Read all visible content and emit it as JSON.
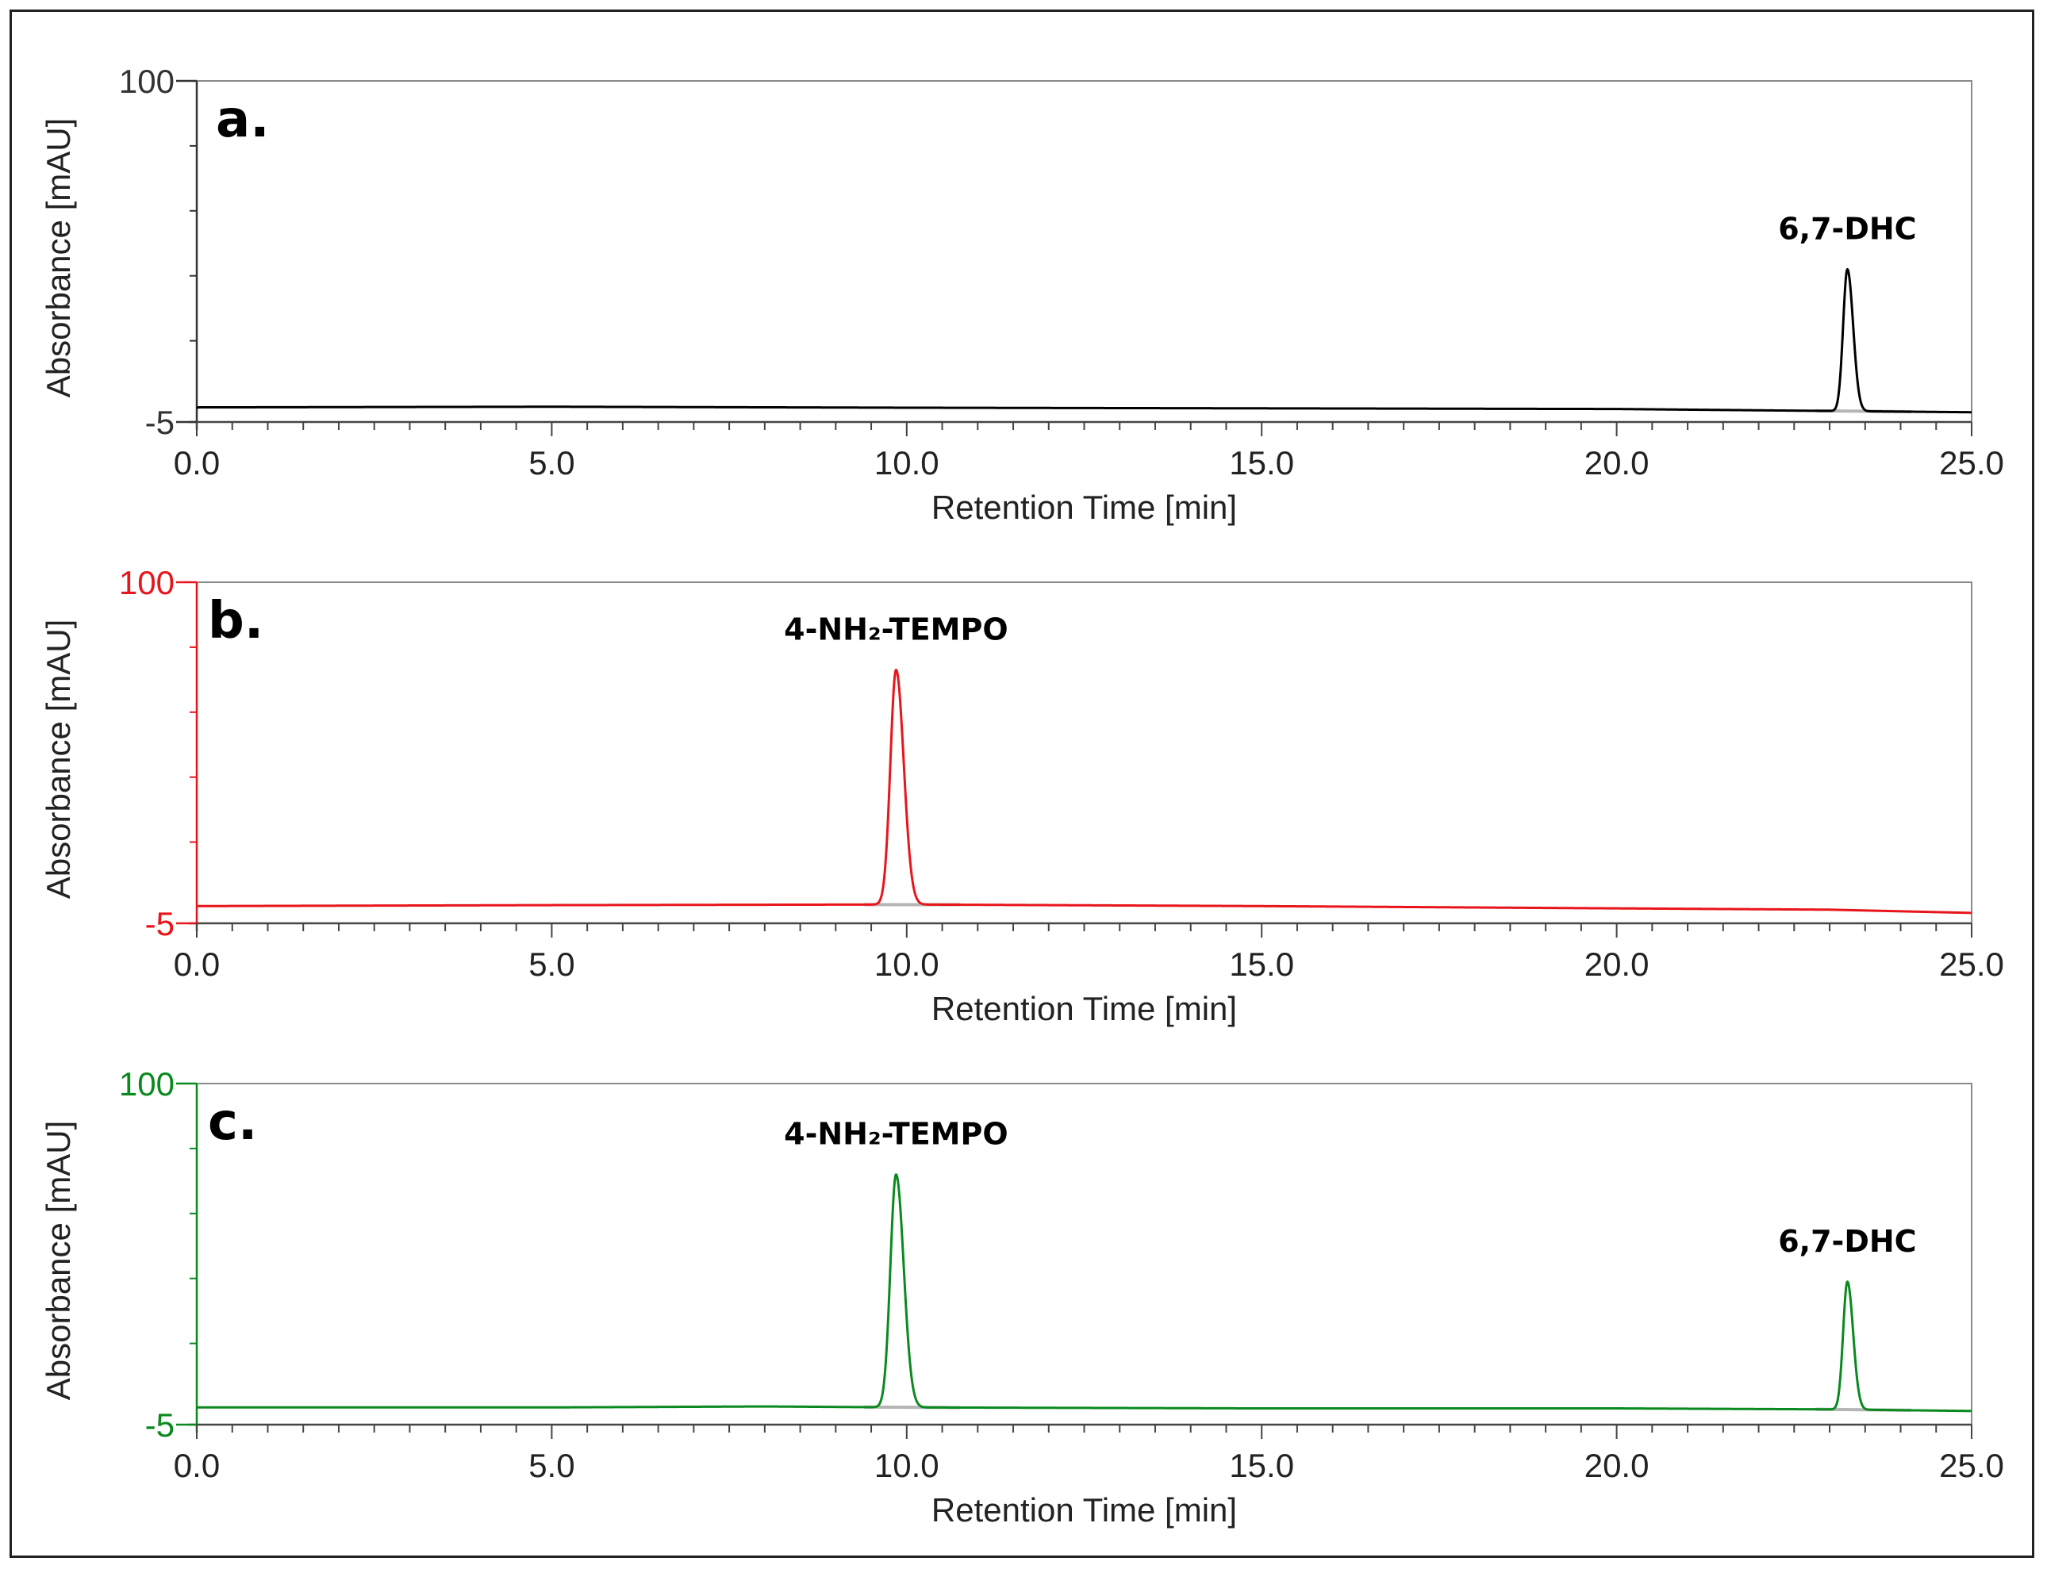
{
  "chart_data": [
    {
      "type": "line",
      "panel_label": "a.",
      "color": "#000000",
      "xlabel": "Retention Time [min]",
      "ylabel": "Absorbance [mAU]",
      "xlim": [
        0,
        25
      ],
      "ylim": [
        -5,
        100
      ],
      "x_ticks": [
        "0.0",
        "5.0",
        "10.0",
        "15.0",
        "20.0",
        "25.0"
      ],
      "y_ticks": [
        "100",
        "-5"
      ],
      "baseline": 0.0,
      "peaks": [
        {
          "label": "6,7-DHC",
          "x": 23.25,
          "y": 42,
          "width": 0.06
        }
      ],
      "baseline_points": [
        [
          0,
          -0.5
        ],
        [
          5,
          -0.3
        ],
        [
          10,
          -0.6
        ],
        [
          15,
          -0.8
        ],
        [
          20,
          -1.0
        ],
        [
          25,
          -2.0
        ]
      ]
    },
    {
      "type": "line",
      "panel_label": "b.",
      "color": "#e8151b",
      "xlabel": "Retention Time [min]",
      "ylabel": "Absorbance [mAU]",
      "xlim": [
        0,
        25
      ],
      "ylim": [
        -5,
        100
      ],
      "x_ticks": [
        "0.0",
        "5.0",
        "10.0",
        "15.0",
        "20.0",
        "25.0"
      ],
      "y_ticks": [
        "100",
        "-5"
      ],
      "peaks": [
        {
          "label": "4-NH₂-TEMPO",
          "x": 9.85,
          "y": 73,
          "width": 0.08
        }
      ],
      "baseline_points": [
        [
          0,
          0.3
        ],
        [
          5,
          0.6
        ],
        [
          10,
          0.8
        ],
        [
          15,
          0.3
        ],
        [
          20,
          -0.4
        ],
        [
          23,
          -0.8
        ],
        [
          25,
          -1.8
        ]
      ]
    },
    {
      "type": "line",
      "panel_label": "c.",
      "color": "#0a8a1e",
      "xlabel": "Retention Time [min]",
      "ylabel": "Absorbance [mAU]",
      "xlim": [
        0,
        25
      ],
      "ylim": [
        -5,
        100
      ],
      "x_ticks": [
        "0.0",
        "5.0",
        "10.0",
        "15.0",
        "20.0",
        "25.0"
      ],
      "y_ticks": [
        "100",
        "-5"
      ],
      "peaks": [
        {
          "label": "4-NH₂-TEMPO",
          "x": 9.85,
          "y": 72,
          "width": 0.08
        },
        {
          "label": "6,7-DHC",
          "x": 23.25,
          "y": 39,
          "width": 0.06
        }
      ],
      "baseline_points": [
        [
          0,
          0.3
        ],
        [
          5,
          0.3
        ],
        [
          8,
          0.6
        ],
        [
          10,
          0.3
        ],
        [
          15,
          0.0
        ],
        [
          20,
          0.0
        ],
        [
          23,
          -0.3
        ],
        [
          25,
          -0.8
        ]
      ]
    }
  ]
}
